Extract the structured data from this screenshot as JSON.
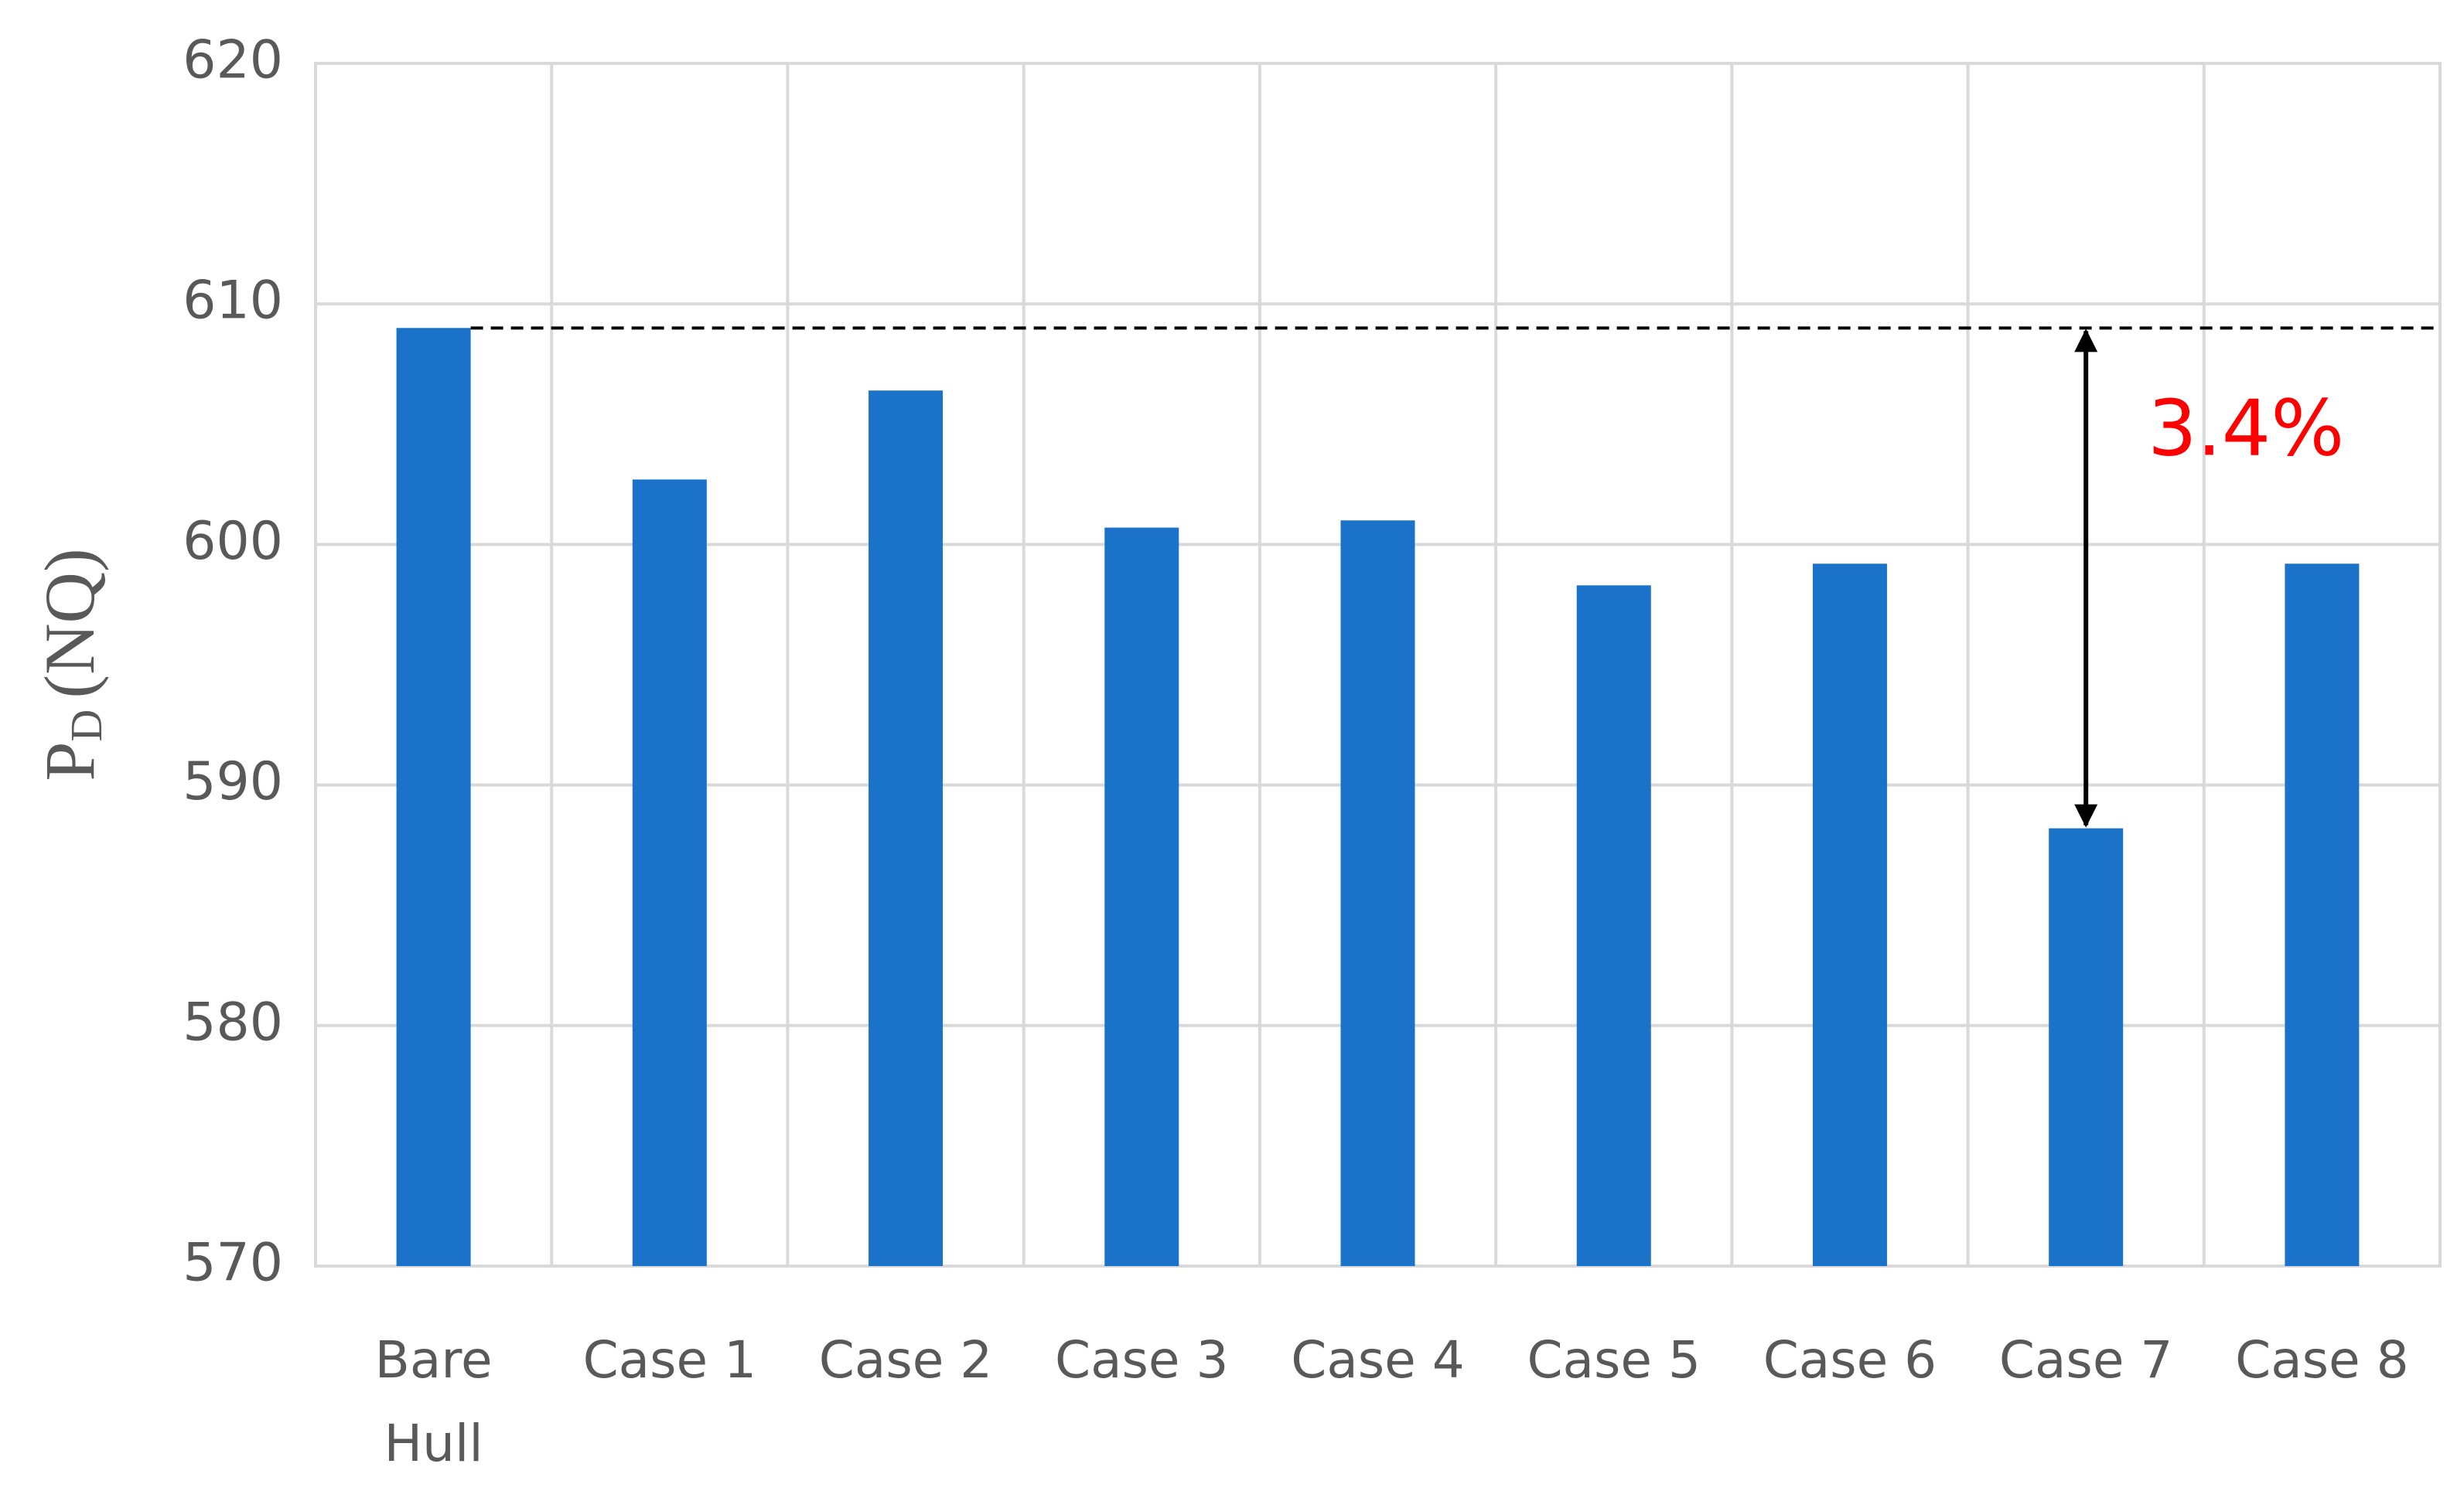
{
  "chart_data": {
    "type": "bar",
    "y_label": {
      "main": "P",
      "sub": "D",
      "unit": "(NQ)"
    },
    "annotation": "3.4%",
    "categories": [
      "Bare Hull",
      "Case 1",
      "Case 2",
      "Case 3",
      "Case 4",
      "Case 5",
      "Case 6",
      "Case 7",
      "Case 8"
    ],
    "values": [
      609.0,
      602.7,
      606.4,
      600.7,
      601.0,
      598.3,
      599.2,
      588.2,
      599.2
    ],
    "color": "#1a73c8",
    "ylim": [
      570,
      620
    ],
    "yticks": [
      570,
      580,
      590,
      600,
      610,
      620
    ],
    "grid": true
  }
}
